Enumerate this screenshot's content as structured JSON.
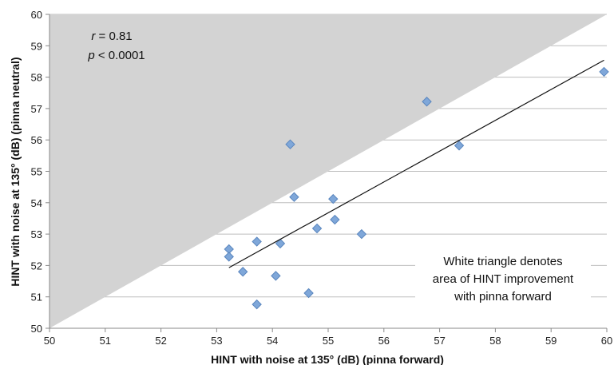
{
  "chart_data": {
    "type": "scatter",
    "xlabel": "HINT with noise at 135° (dB) (pinna forward)",
    "ylabel": "HINT with noise at 135° (dB) (pinna neutral)",
    "xlim": [
      50,
      60
    ],
    "ylim": [
      50,
      60
    ],
    "x_ticks": [
      "50",
      "51",
      "52",
      "53",
      "54",
      "55",
      "56",
      "57",
      "58",
      "59",
      "60"
    ],
    "y_ticks": [
      "50",
      "51",
      "52",
      "53",
      "54",
      "55",
      "56",
      "57",
      "58",
      "59",
      "60"
    ],
    "grid": "horizontal",
    "marker_color": "#7FA7D9",
    "marker_edge_color": "#5A86BE",
    "shaded_region_color": "#D3D3D3",
    "points": [
      {
        "x": 53.22,
        "y": 52.52
      },
      {
        "x": 53.22,
        "y": 52.28
      },
      {
        "x": 53.47,
        "y": 51.8
      },
      {
        "x": 53.72,
        "y": 52.76
      },
      {
        "x": 53.72,
        "y": 50.76
      },
      {
        "x": 54.06,
        "y": 51.67
      },
      {
        "x": 54.14,
        "y": 52.7
      },
      {
        "x": 54.32,
        "y": 55.86
      },
      {
        "x": 54.39,
        "y": 54.18
      },
      {
        "x": 54.65,
        "y": 51.12
      },
      {
        "x": 54.8,
        "y": 53.18
      },
      {
        "x": 55.09,
        "y": 54.12
      },
      {
        "x": 55.12,
        "y": 53.46
      },
      {
        "x": 55.6,
        "y": 53.0
      },
      {
        "x": 56.77,
        "y": 57.22
      },
      {
        "x": 57.35,
        "y": 55.82
      },
      {
        "x": 59.95,
        "y": 58.17
      }
    ],
    "regression_line": {
      "x": [
        53.22,
        59.95
      ],
      "y": [
        51.93,
        58.54
      ]
    },
    "annotations": {
      "r_label": "r",
      "r_value": " = 0.81",
      "p_label": "p",
      "p_value": " < 0.0001",
      "note_lines": [
        "White triangle denotes",
        "area of HINT improvement",
        "with pinna forward"
      ]
    }
  }
}
